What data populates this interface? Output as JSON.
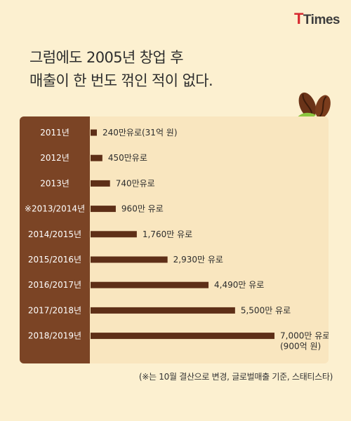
{
  "logo": {
    "t_letter": "T",
    "name": "Times"
  },
  "headline": {
    "line1": "그럼에도 2005년 창업 후",
    "line2": "매출이 한 번도 꺾인 적이 없다."
  },
  "footnote": "(※는 10월 결산으로 변경, 글로벌매출 기준, 스태티스타)",
  "colors": {
    "background": "#fcf0d0",
    "card": "#f9e6bf",
    "sidebar": "#7b4425",
    "bar": "#5e2f17",
    "bean": "#6a3318",
    "leaf": "#8cc63f"
  },
  "icons": [
    "coffee-bean-icon",
    "leaf-icon"
  ],
  "chart_data": {
    "type": "bar",
    "orientation": "horizontal",
    "unit": "만 유로",
    "categories": [
      "2011년",
      "2012년",
      "2013년",
      "※2013/2014년",
      "2014/2015년",
      "2015/2016년",
      "2016/2017년",
      "2017/2018년",
      "2018/2019년"
    ],
    "values": [
      240,
      450,
      740,
      960,
      1760,
      2930,
      4490,
      5500,
      7000
    ],
    "value_labels": [
      [
        "240만유로(31억 원)"
      ],
      [
        "450만유로"
      ],
      [
        "740만유로"
      ],
      [
        "960만 유로"
      ],
      [
        "1,760만 유로"
      ],
      [
        "2,930만 유로"
      ],
      [
        "4,490만 유로"
      ],
      [
        "5,500만 유로"
      ],
      [
        "7,000만 유로",
        "(900억 원)"
      ]
    ],
    "xlim": [
      0,
      7000
    ],
    "grid": false,
    "legend": "none"
  }
}
